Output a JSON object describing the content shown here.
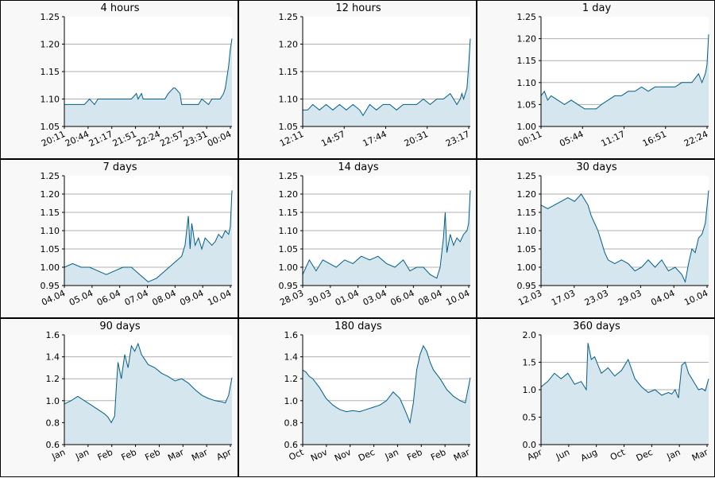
{
  "colors": {
    "line": "#005f87",
    "fill": "#d6e6ee",
    "grid": "#b0b0b0",
    "plot_bg": "#ffffff",
    "panel_bg": "#f8f8f8"
  },
  "chart_data": [
    {
      "type": "area",
      "title": "4 hours",
      "ylim": [
        1.05,
        1.25
      ],
      "yticks": [
        "1.05",
        "1.10",
        "1.15",
        "1.20",
        "1.25"
      ],
      "xticks": [
        "20:11",
        "20:44",
        "21:17",
        "21:51",
        "22:24",
        "22:57",
        "23:31",
        "00:04"
      ],
      "x": [
        0,
        0.02,
        0.05,
        0.08,
        0.12,
        0.15,
        0.18,
        0.2,
        0.23,
        0.28,
        0.33,
        0.4,
        0.43,
        0.44,
        0.46,
        0.47,
        0.5,
        0.55,
        0.6,
        0.62,
        0.65,
        0.66,
        0.69,
        0.7,
        0.75,
        0.8,
        0.82,
        0.86,
        0.88,
        0.9,
        0.93,
        0.95,
        0.96,
        0.97,
        0.98,
        0.99,
        1
      ],
      "values": [
        1.09,
        1.09,
        1.09,
        1.09,
        1.09,
        1.1,
        1.09,
        1.1,
        1.1,
        1.1,
        1.1,
        1.1,
        1.11,
        1.1,
        1.11,
        1.1,
        1.1,
        1.1,
        1.1,
        1.11,
        1.12,
        1.12,
        1.11,
        1.09,
        1.09,
        1.09,
        1.1,
        1.09,
        1.1,
        1.1,
        1.1,
        1.11,
        1.12,
        1.14,
        1.16,
        1.19,
        1.21
      ],
      "grid": true
    },
    {
      "type": "area",
      "title": "12 hours",
      "ylim": [
        1.05,
        1.25
      ],
      "yticks": [
        "1.05",
        "1.10",
        "1.15",
        "1.20",
        "1.25"
      ],
      "xticks": [
        "12:11",
        "14:57",
        "17:44",
        "20:31",
        "23:17"
      ],
      "x": [
        0,
        0.03,
        0.06,
        0.1,
        0.14,
        0.18,
        0.22,
        0.26,
        0.3,
        0.34,
        0.36,
        0.38,
        0.4,
        0.44,
        0.48,
        0.52,
        0.56,
        0.6,
        0.64,
        0.68,
        0.72,
        0.76,
        0.8,
        0.84,
        0.88,
        0.9,
        0.92,
        0.94,
        0.95,
        0.96,
        0.97,
        0.98,
        0.99,
        1
      ],
      "values": [
        1.08,
        1.08,
        1.09,
        1.08,
        1.09,
        1.08,
        1.09,
        1.08,
        1.09,
        1.08,
        1.07,
        1.08,
        1.09,
        1.08,
        1.09,
        1.09,
        1.08,
        1.09,
        1.09,
        1.09,
        1.1,
        1.09,
        1.1,
        1.1,
        1.11,
        1.1,
        1.09,
        1.1,
        1.11,
        1.1,
        1.11,
        1.12,
        1.16,
        1.21
      ],
      "grid": true
    },
    {
      "type": "area",
      "title": "1 day",
      "ylim": [
        1.0,
        1.25
      ],
      "yticks": [
        "1.00",
        "1.05",
        "1.10",
        "1.15",
        "1.20",
        "1.25"
      ],
      "xticks": [
        "00:11",
        "05:44",
        "11:17",
        "16:51",
        "22:24"
      ],
      "x": [
        0,
        0.02,
        0.04,
        0.06,
        0.1,
        0.14,
        0.18,
        0.22,
        0.26,
        0.3,
        0.33,
        0.36,
        0.4,
        0.44,
        0.48,
        0.52,
        0.56,
        0.6,
        0.64,
        0.68,
        0.72,
        0.76,
        0.8,
        0.84,
        0.88,
        0.9,
        0.92,
        0.94,
        0.96,
        0.97,
        0.98,
        0.99,
        1
      ],
      "values": [
        1.07,
        1.08,
        1.06,
        1.07,
        1.06,
        1.05,
        1.06,
        1.05,
        1.04,
        1.04,
        1.04,
        1.05,
        1.06,
        1.07,
        1.07,
        1.08,
        1.08,
        1.09,
        1.08,
        1.09,
        1.09,
        1.09,
        1.09,
        1.1,
        1.1,
        1.1,
        1.11,
        1.12,
        1.1,
        1.11,
        1.12,
        1.14,
        1.21
      ],
      "grid": true
    },
    {
      "type": "area",
      "title": "7 days",
      "ylim": [
        0.95,
        1.25
      ],
      "yticks": [
        "0.95",
        "1.00",
        "1.05",
        "1.10",
        "1.15",
        "1.20",
        "1.25"
      ],
      "xticks": [
        "04.04",
        "05.04",
        "06.04",
        "07.04",
        "08.04",
        "09.04",
        "10.04"
      ],
      "x": [
        0,
        0.05,
        0.1,
        0.15,
        0.2,
        0.25,
        0.3,
        0.35,
        0.4,
        0.45,
        0.5,
        0.55,
        0.6,
        0.65,
        0.7,
        0.72,
        0.74,
        0.75,
        0.76,
        0.78,
        0.8,
        0.82,
        0.84,
        0.86,
        0.88,
        0.9,
        0.92,
        0.94,
        0.96,
        0.98,
        0.99,
        1
      ],
      "values": [
        1.0,
        1.01,
        1.0,
        1.0,
        0.99,
        0.98,
        0.99,
        1.0,
        1.0,
        0.98,
        0.96,
        0.97,
        0.99,
        1.01,
        1.03,
        1.06,
        1.14,
        1.05,
        1.12,
        1.06,
        1.08,
        1.05,
        1.08,
        1.07,
        1.06,
        1.07,
        1.09,
        1.08,
        1.1,
        1.09,
        1.11,
        1.21
      ],
      "grid": true
    },
    {
      "type": "area",
      "title": "14 days",
      "ylim": [
        0.95,
        1.25
      ],
      "yticks": [
        "0.95",
        "1.00",
        "1.05",
        "1.10",
        "1.15",
        "1.20",
        "1.25"
      ],
      "xticks": [
        "28.03",
        "30.03",
        "01.04",
        "03.04",
        "06.04",
        "08.04",
        "10.04"
      ],
      "x": [
        0,
        0.04,
        0.08,
        0.12,
        0.16,
        0.2,
        0.25,
        0.3,
        0.35,
        0.4,
        0.45,
        0.5,
        0.55,
        0.6,
        0.64,
        0.68,
        0.72,
        0.76,
        0.8,
        0.82,
        0.84,
        0.85,
        0.86,
        0.88,
        0.9,
        0.92,
        0.94,
        0.96,
        0.98,
        0.99,
        1
      ],
      "values": [
        0.98,
        1.02,
        0.99,
        1.02,
        1.01,
        1.0,
        1.02,
        1.01,
        1.03,
        1.02,
        1.03,
        1.01,
        1.0,
        1.02,
        0.99,
        1.0,
        1.0,
        0.98,
        0.97,
        1.0,
        1.08,
        1.15,
        1.04,
        1.09,
        1.06,
        1.08,
        1.07,
        1.09,
        1.1,
        1.12,
        1.21
      ],
      "grid": true
    },
    {
      "type": "area",
      "title": "30 days",
      "ylim": [
        0.95,
        1.25
      ],
      "yticks": [
        "0.95",
        "1.00",
        "1.05",
        "1.10",
        "1.15",
        "1.20",
        "1.25"
      ],
      "xticks": [
        "12.03",
        "17.03",
        "23.03",
        "29.03",
        "04.04",
        "10.04"
      ],
      "x": [
        0,
        0.04,
        0.08,
        0.12,
        0.16,
        0.2,
        0.24,
        0.28,
        0.3,
        0.32,
        0.34,
        0.36,
        0.38,
        0.4,
        0.44,
        0.48,
        0.52,
        0.56,
        0.6,
        0.64,
        0.68,
        0.72,
        0.76,
        0.8,
        0.84,
        0.86,
        0.88,
        0.9,
        0.92,
        0.94,
        0.96,
        0.98,
        1
      ],
      "values": [
        1.17,
        1.16,
        1.17,
        1.18,
        1.19,
        1.18,
        1.2,
        1.17,
        1.14,
        1.12,
        1.1,
        1.07,
        1.04,
        1.02,
        1.01,
        1.02,
        1.01,
        0.99,
        1.0,
        1.02,
        1.0,
        1.02,
        0.99,
        1.0,
        0.98,
        0.96,
        1.01,
        1.05,
        1.04,
        1.08,
        1.09,
        1.12,
        1.21
      ],
      "grid": true
    },
    {
      "type": "area",
      "title": "90 days",
      "ylim": [
        0.6,
        1.6
      ],
      "yticks": [
        "0.6",
        "0.8",
        "1.0",
        "1.2",
        "1.4",
        "1.6"
      ],
      "xticks": [
        "Jan",
        "Jan",
        "Feb",
        "Feb",
        "Feb",
        "Mar",
        "Mar",
        "Apr"
      ],
      "x": [
        0,
        0.04,
        0.08,
        0.12,
        0.16,
        0.2,
        0.24,
        0.26,
        0.28,
        0.3,
        0.31,
        0.32,
        0.34,
        0.36,
        0.38,
        0.4,
        0.42,
        0.44,
        0.46,
        0.5,
        0.54,
        0.58,
        0.62,
        0.66,
        0.7,
        0.74,
        0.78,
        0.82,
        0.86,
        0.9,
        0.94,
        0.96,
        0.98,
        1
      ],
      "values": [
        0.97,
        1.0,
        1.04,
        1.0,
        0.96,
        0.92,
        0.88,
        0.85,
        0.8,
        0.86,
        1.12,
        1.35,
        1.2,
        1.42,
        1.3,
        1.5,
        1.45,
        1.52,
        1.42,
        1.33,
        1.3,
        1.25,
        1.22,
        1.18,
        1.2,
        1.16,
        1.1,
        1.05,
        1.02,
        1.0,
        0.99,
        0.98,
        1.05,
        1.21
      ],
      "grid": true
    },
    {
      "type": "area",
      "title": "180 days",
      "ylim": [
        0.6,
        1.6
      ],
      "yticks": [
        "0.6",
        "0.8",
        "1.0",
        "1.2",
        "1.4",
        "1.6"
      ],
      "xticks": [
        "Oct",
        "Nov",
        "Nov",
        "Dec",
        "Jan",
        "Feb",
        "Feb",
        "Mar"
      ],
      "x": [
        0,
        0.02,
        0.04,
        0.06,
        0.1,
        0.14,
        0.18,
        0.22,
        0.26,
        0.3,
        0.34,
        0.38,
        0.42,
        0.46,
        0.5,
        0.54,
        0.58,
        0.62,
        0.64,
        0.66,
        0.68,
        0.7,
        0.72,
        0.74,
        0.76,
        0.78,
        0.82,
        0.86,
        0.9,
        0.94,
        0.97,
        1
      ],
      "values": [
        1.28,
        1.26,
        1.22,
        1.2,
        1.12,
        1.02,
        0.96,
        0.92,
        0.9,
        0.91,
        0.9,
        0.92,
        0.94,
        0.96,
        1.0,
        1.08,
        1.02,
        0.88,
        0.8,
        0.98,
        1.28,
        1.42,
        1.5,
        1.45,
        1.35,
        1.28,
        1.2,
        1.1,
        1.04,
        1.0,
        0.98,
        1.21
      ],
      "grid": true
    },
    {
      "type": "area",
      "title": "360 days",
      "ylim": [
        0.0,
        2.0
      ],
      "yticks": [
        "0.0",
        "0.5",
        "1.0",
        "1.5",
        "2.0"
      ],
      "xticks": [
        "Apr",
        "Jun",
        "Aug",
        "Oct",
        "Dec",
        "Jan",
        "Mar"
      ],
      "x": [
        0,
        0.04,
        0.08,
        0.12,
        0.16,
        0.2,
        0.24,
        0.27,
        0.28,
        0.3,
        0.32,
        0.34,
        0.36,
        0.4,
        0.44,
        0.48,
        0.52,
        0.56,
        0.6,
        0.64,
        0.68,
        0.72,
        0.76,
        0.78,
        0.8,
        0.82,
        0.84,
        0.86,
        0.88,
        0.9,
        0.92,
        0.94,
        0.96,
        0.98,
        1
      ],
      "values": [
        1.05,
        1.15,
        1.3,
        1.2,
        1.3,
        1.1,
        1.15,
        1.0,
        1.85,
        1.55,
        1.6,
        1.45,
        1.3,
        1.4,
        1.25,
        1.35,
        1.55,
        1.2,
        1.05,
        0.95,
        1.0,
        0.9,
        0.95,
        0.92,
        1.0,
        0.85,
        1.45,
        1.5,
        1.3,
        1.2,
        1.1,
        1.0,
        1.02,
        0.98,
        1.2
      ],
      "grid": true
    }
  ]
}
